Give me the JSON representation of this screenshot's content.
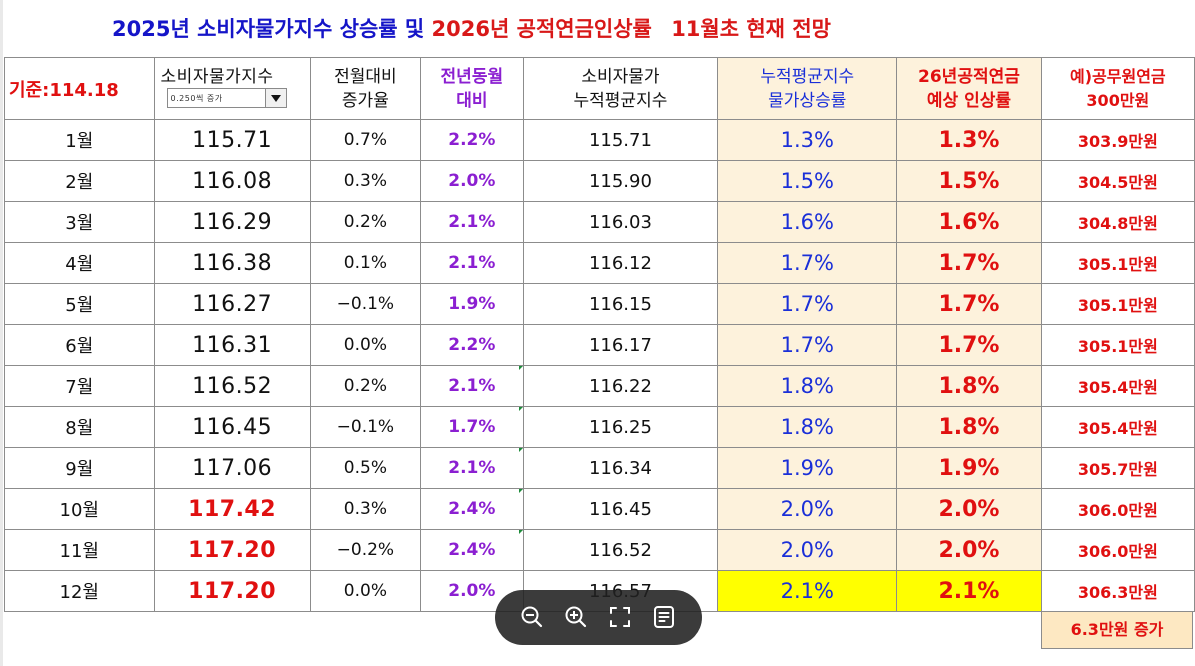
{
  "title": {
    "part1": "2025년 소비자물가지수 상승률 및",
    "part2": "2026년 공적연금인상률",
    "part3": "11월초 현재 전망"
  },
  "header": {
    "base": "기준:114.18",
    "cpi": "소비자물가지수",
    "dropdown_value": "0.250씩 증가",
    "mom": "전월대비\n증가율",
    "yoy": "전년동월\n대비",
    "avg": "소비자물가\n누적평균지수",
    "rate": "누적평균지수\n물가상승률",
    "pension": "26년공적연금\n예상 인상률",
    "example": "예)공무원연금\n300만원"
  },
  "rows": [
    {
      "month": "1월",
      "cpi": "115.71",
      "mom": "0.7%",
      "yoy": "2.2%",
      "avg": "115.71",
      "rate": "1.3%",
      "pension": "1.3%",
      "example": "303.9만원"
    },
    {
      "month": "2월",
      "cpi": "116.08",
      "mom": "0.3%",
      "yoy": "2.0%",
      "avg": "115.90",
      "rate": "1.5%",
      "pension": "1.5%",
      "example": "304.5만원"
    },
    {
      "month": "3월",
      "cpi": "116.29",
      "mom": "0.2%",
      "yoy": "2.1%",
      "avg": "116.03",
      "rate": "1.6%",
      "pension": "1.6%",
      "example": "304.8만원"
    },
    {
      "month": "4월",
      "cpi": "116.38",
      "mom": "0.1%",
      "yoy": "2.1%",
      "avg": "116.12",
      "rate": "1.7%",
      "pension": "1.7%",
      "example": "305.1만원"
    },
    {
      "month": "5월",
      "cpi": "116.27",
      "mom": "−0.1%",
      "yoy": "1.9%",
      "avg": "116.15",
      "rate": "1.7%",
      "pension": "1.7%",
      "example": "305.1만원"
    },
    {
      "month": "6월",
      "cpi": "116.31",
      "mom": "0.0%",
      "yoy": "2.2%",
      "avg": "116.17",
      "rate": "1.7%",
      "pension": "1.7%",
      "example": "305.1만원"
    },
    {
      "month": "7월",
      "cpi": "116.52",
      "mom": "0.2%",
      "yoy": "2.1%",
      "avg": "116.22",
      "rate": "1.8%",
      "pension": "1.8%",
      "example": "305.4만원"
    },
    {
      "month": "8월",
      "cpi": "116.45",
      "mom": "−0.1%",
      "yoy": "1.7%",
      "avg": "116.25",
      "rate": "1.8%",
      "pension": "1.8%",
      "example": "305.4만원"
    },
    {
      "month": "9월",
      "cpi": "117.06",
      "mom": "0.5%",
      "yoy": "2.1%",
      "avg": "116.34",
      "rate": "1.9%",
      "pension": "1.9%",
      "example": "305.7만원"
    },
    {
      "month": "10월",
      "cpi": "117.42",
      "mom": "0.3%",
      "yoy": "2.4%",
      "avg": "116.45",
      "rate": "2.0%",
      "pension": "2.0%",
      "example": "306.0만원"
    },
    {
      "month": "11월",
      "cpi": "117.20",
      "mom": "−0.2%",
      "yoy": "2.4%",
      "avg": "116.52",
      "rate": "2.0%",
      "pension": "2.0%",
      "example": "306.0만원"
    },
    {
      "month": "12월",
      "cpi": "117.20",
      "mom": "0.0%",
      "yoy": "2.0%",
      "avg": "116.57",
      "rate": "2.1%",
      "pension": "2.1%",
      "example": "306.3만원"
    }
  ],
  "increase_label": "6.3만원 증가",
  "toolbar": {
    "icons": [
      "zoom-out-icon",
      "zoom-in-icon",
      "fullscreen-icon",
      "notes-icon"
    ]
  },
  "colors": {
    "title_blue": "#1515c8",
    "red": "#e01010",
    "purple": "#8b1fd1",
    "rate_blue": "#1a2fd8",
    "cream": "#fdf2dc",
    "highlight": "#ffff00"
  }
}
